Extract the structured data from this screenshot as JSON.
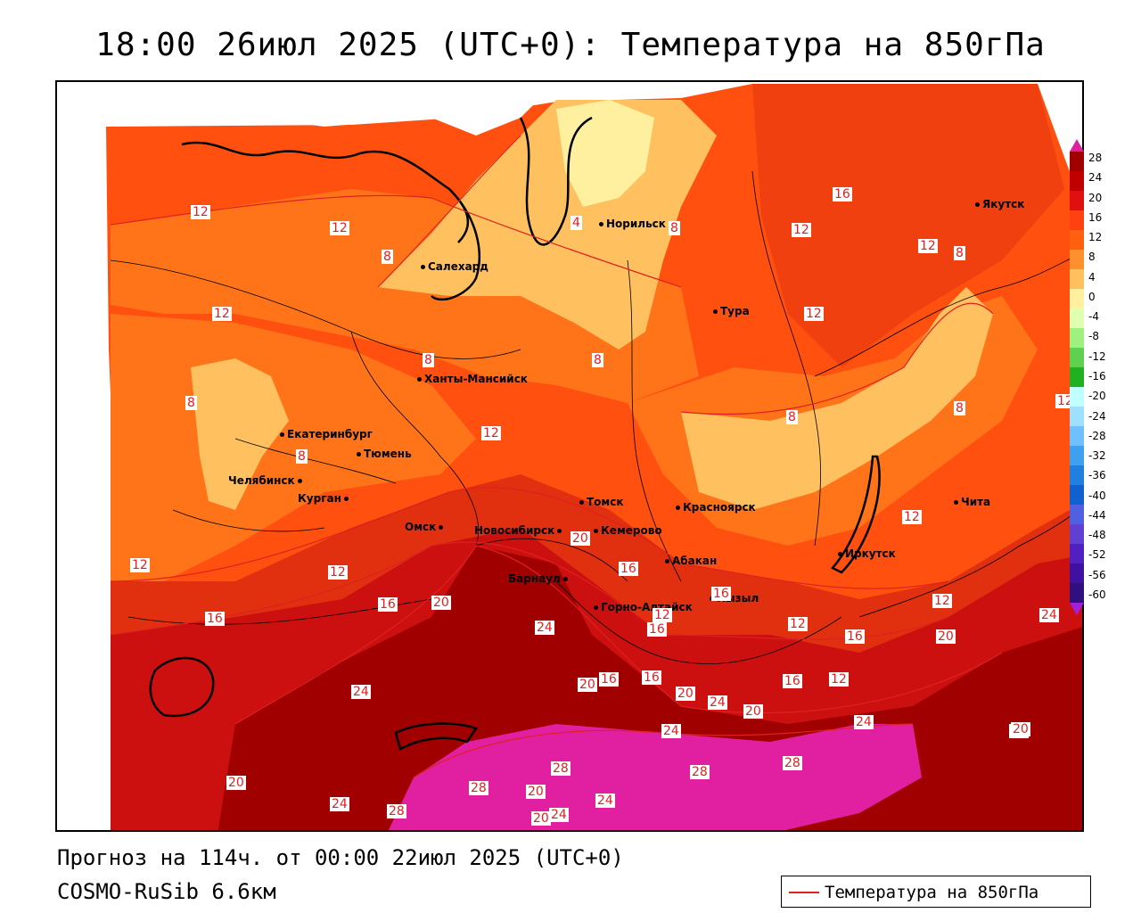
{
  "title": "18:00 26июл 2025 (UTC+0): Температура на 850гПа",
  "forecast_line": "Прогноз на 114ч. от 00:00 22июл 2025 (UTC+0)",
  "model_line": "COSMO-RuSib 6.6км",
  "legend_label": "Температура на 850гПа",
  "colors": {
    "t28": "#e020a0",
    "t24": "#a00000",
    "t20": "#cc1010",
    "t16": "#e03010",
    "t12": "#ff5010",
    "t8": "#ff8020",
    "t4": "#ffc060",
    "t0": "#fff0a0",
    "isoline": "#e02020"
  },
  "scale_values": [
    "28",
    "24",
    "20",
    "16",
    "12",
    "8",
    "4",
    "0",
    "-4",
    "-8",
    "-12",
    "-16",
    "-20",
    "-24",
    "-28",
    "-32",
    "-36",
    "-40",
    "-44",
    "-48",
    "-52",
    "-56",
    "-60"
  ],
  "cities": [
    {
      "name": "Якутск"
    },
    {
      "name": "Норильск"
    },
    {
      "name": "Салехард"
    },
    {
      "name": "Тура"
    },
    {
      "name": "Ханты-Мансийск"
    },
    {
      "name": "Екатеринбург"
    },
    {
      "name": "Тюмень"
    },
    {
      "name": "Челябинск"
    },
    {
      "name": "Курган"
    },
    {
      "name": "Омск"
    },
    {
      "name": "Новосибирск"
    },
    {
      "name": "Томск"
    },
    {
      "name": "Кемерово"
    },
    {
      "name": "Красноярск"
    },
    {
      "name": "Абакан"
    },
    {
      "name": "Барнаул"
    },
    {
      "name": "Горно-Алтайск"
    },
    {
      "name": "Кызыл"
    },
    {
      "name": "Иркутск"
    },
    {
      "name": "Чита"
    }
  ],
  "isoline_labels": [
    "12",
    "12",
    "8",
    "12",
    "16",
    "12",
    "12",
    "8",
    "8",
    "8",
    "8",
    "12",
    "8",
    "12",
    "8",
    "8",
    "12",
    "12",
    "20",
    "16",
    "16",
    "12",
    "16",
    "20",
    "12",
    "16",
    "12",
    "12",
    "16",
    "20",
    "12",
    "24",
    "16",
    "24",
    "20",
    "16",
    "16",
    "20",
    "24",
    "20",
    "24",
    "16",
    "12",
    "24",
    "20",
    "24",
    "28",
    "28",
    "28",
    "28",
    "20",
    "24",
    "20",
    "24",
    "20",
    "28",
    "20",
    "24",
    "4",
    "8"
  ]
}
